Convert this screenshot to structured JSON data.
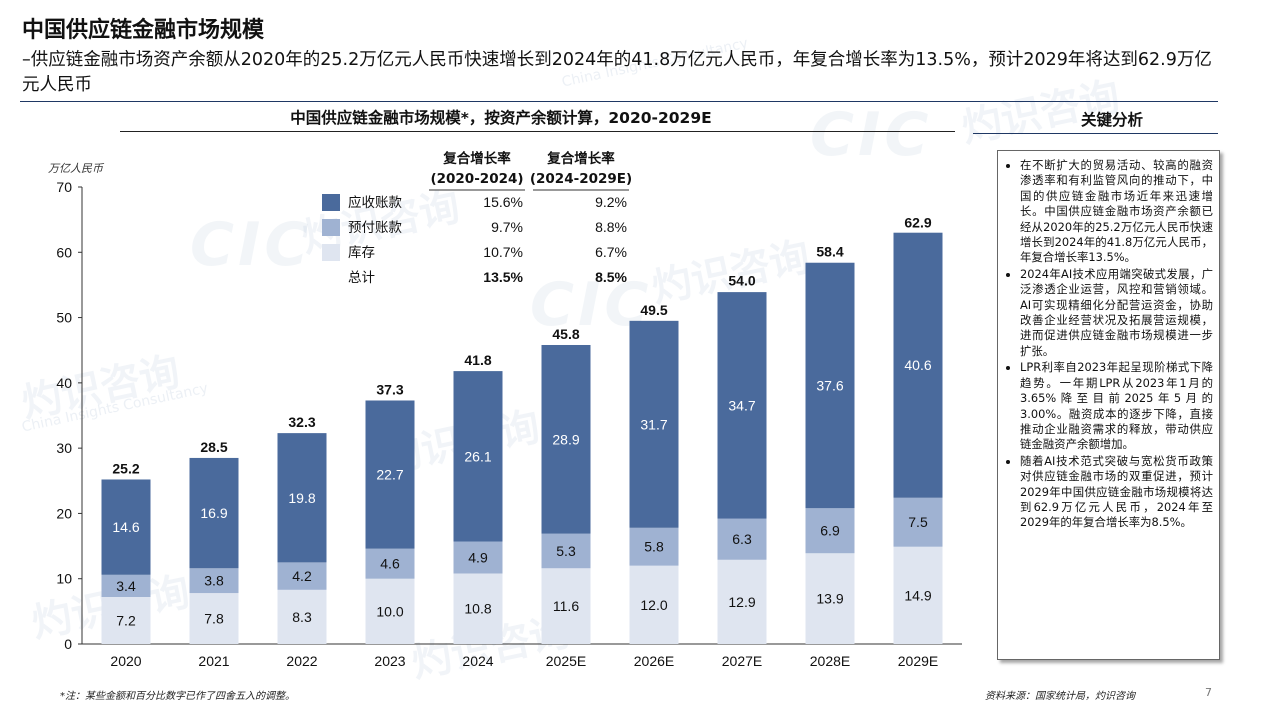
{
  "header": {
    "title": "中国供应链金融市场规模",
    "subtitle": "–供应链金融市场资产余额从2020年的25.2万亿元人民币快速增长到2024年的41.8万亿元人民币，年复合增长率为13.5%，预计2029年将达到62.9万亿元人民币"
  },
  "chart_title": "中国供应链金融市场规模*，按资产余额计算，2020-2029E",
  "key_points": {
    "title": "关键分析",
    "items": [
      "在不断扩大的贸易活动、较高的融资渗透率和有利监管风向的推动下，中国的供应链金融市场近年来迅速增长。中国供应链金融市场资产余额已经从2020年的25.2万亿元人民币快速增长到2024年的41.8万亿元人民币，年复合增长率13.5%。",
      "2024年AI技术应用端突破式发展，广泛渗透企业运营，风控和营销领域。AI可实现精细化分配营运资金，协助改善企业经营状况及拓展营运规模，进而促进供应链金融市场规模进一步扩张。",
      "LPR利率自2023年起呈现阶梯式下降趋势。一年期LPR从2023年1月的3.65%降至目前2025年5月的3.00%。融资成本的逐步下降，直接推动企业融资需求的释放，带动供应链金融资产余额增加。",
      "随着AI技术范式突破与宽松货币政策对供应链金融市场的双重促进，预计2029年中国供应链金融市场规模将达到62.9万亿元人民币，2024年至2029年的年复合增长率为8.5%。"
    ]
  },
  "footnote": "*注：某些金额和百分比数字已作了四舍五入的调整。",
  "source": "资料来源：国家统计局，灼识咨询",
  "page_number": "7",
  "watermark": {
    "cn": "灼识咨询",
    "en": "China Insights Consultancy",
    "logo": "CIC"
  },
  "colors": {
    "receivables": "#4a6a9c",
    "prepayments": "#9fb2d2",
    "inventory": "#dfe5f0",
    "accent": "#1f3864"
  },
  "chart_data": {
    "type": "bar",
    "stacked": true,
    "unit_label": "万亿人民币",
    "categories": [
      "2020",
      "2021",
      "2022",
      "2023",
      "2024",
      "2025E",
      "2026E",
      "2027E",
      "2028E",
      "2029E"
    ],
    "series": [
      {
        "name": "库存",
        "values": [
          7.2,
          7.8,
          8.3,
          10.0,
          10.8,
          11.6,
          12.0,
          12.9,
          13.9,
          14.9
        ]
      },
      {
        "name": "预付账款",
        "values": [
          3.4,
          3.8,
          4.2,
          4.6,
          4.9,
          5.3,
          5.8,
          6.3,
          6.9,
          7.5
        ]
      },
      {
        "name": "应收账款",
        "values": [
          14.6,
          16.9,
          19.8,
          22.7,
          26.1,
          28.9,
          31.7,
          34.7,
          37.6,
          40.6
        ]
      }
    ],
    "totals": [
      25.2,
      28.5,
      32.3,
      37.3,
      41.8,
      45.8,
      49.5,
      54.0,
      58.4,
      62.9
    ],
    "ylim": [
      0,
      70
    ],
    "yticks": [
      0,
      10,
      20,
      30,
      40,
      50,
      60,
      70
    ],
    "grid": false,
    "cagr_table": {
      "headers": [
        "复合增长率\n(2020-2024)",
        "复合增长率\n(2024-2029E)"
      ],
      "rows": [
        {
          "label": "应收账款",
          "values": [
            "15.6%",
            "9.2%"
          ]
        },
        {
          "label": "预付账款",
          "values": [
            "9.7%",
            "8.8%"
          ]
        },
        {
          "label": "库存",
          "values": [
            "10.7%",
            "6.7%"
          ]
        },
        {
          "label": "总计",
          "values": [
            "13.5%",
            "8.5%"
          ]
        }
      ]
    }
  }
}
